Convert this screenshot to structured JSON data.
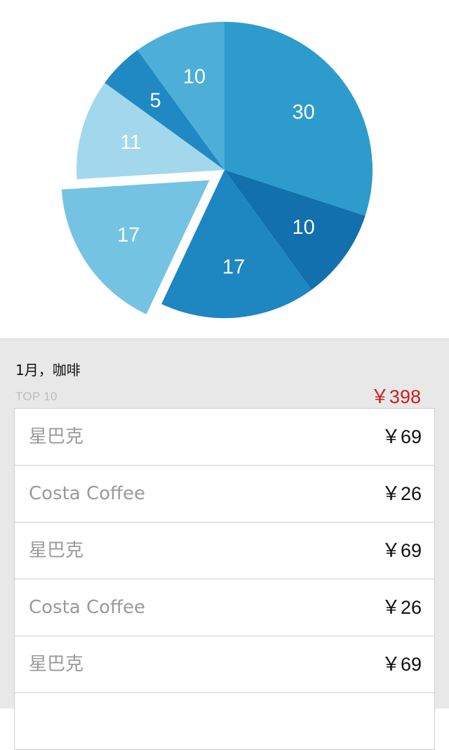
{
  "chart_data": {
    "type": "pie",
    "values": [
      30,
      10,
      17,
      17,
      11,
      5,
      10
    ],
    "labels": [
      "30",
      "10",
      "17",
      "17",
      "11",
      "5",
      "10"
    ],
    "colors": [
      "#2d9ccc",
      "#1270ad",
      "#1e86c1",
      "#74c3e2",
      "#a3d8ec",
      "#2089c3",
      "#4daed7"
    ],
    "exploded_index": 3
  },
  "summary": {
    "title": "1月，咖啡",
    "subtitle": "TOP 10",
    "total": "￥398"
  },
  "list": [
    {
      "name": "星巴克",
      "price": "￥69"
    },
    {
      "name": "Costa Coffee",
      "price": "￥26"
    },
    {
      "name": "星巴克",
      "price": "￥69"
    },
    {
      "name": "Costa Coffee",
      "price": "￥26"
    },
    {
      "name": "星巴克",
      "price": "￥69"
    },
    {
      "name": "",
      "price": ""
    }
  ]
}
